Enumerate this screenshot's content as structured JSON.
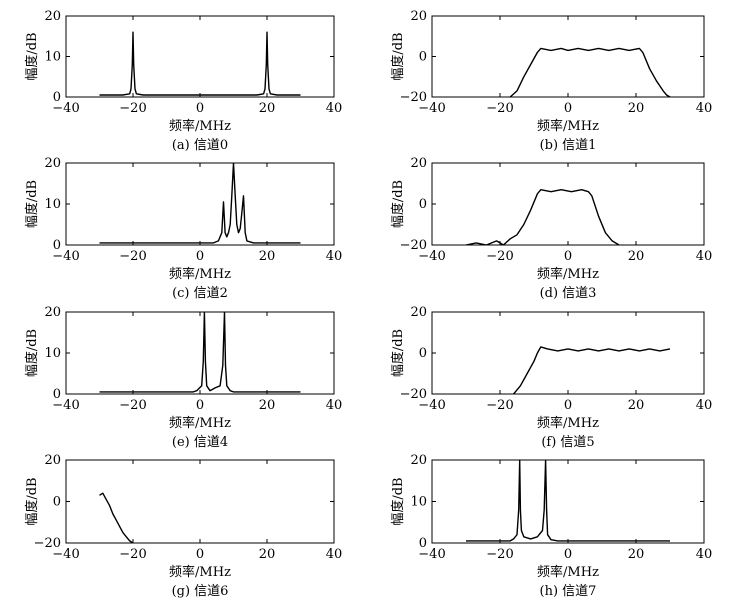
{
  "chart_data": [
    {
      "id": "a",
      "type": "line",
      "caption": "(a) 信道0",
      "xlabel": "频率/MHz",
      "ylabel": "幅度/dB",
      "xlim": [
        -40,
        40
      ],
      "ylim": [
        0,
        20
      ],
      "xticks": [
        -40,
        -20,
        0,
        20,
        40
      ],
      "yticks": [
        0,
        10,
        20
      ],
      "series": [
        {
          "x": [
            -30,
            -23,
            -21,
            -20.6,
            -20.2,
            -20,
            -19.8,
            -19.4,
            -19,
            -17,
            0,
            17,
            19,
            19.4,
            19.8,
            20,
            20.2,
            20.6,
            21,
            23,
            30
          ],
          "y": [
            0.5,
            0.5,
            0.8,
            2,
            8,
            16,
            8,
            2,
            0.8,
            0.5,
            0.5,
            0.5,
            0.8,
            2,
            8,
            16,
            8,
            2,
            0.8,
            0.5,
            0.5
          ]
        }
      ]
    },
    {
      "id": "b",
      "type": "line",
      "caption": "(b) 信道1",
      "xlabel": "频率/MHz",
      "ylabel": "幅度/dB",
      "xlim": [
        -40,
        40
      ],
      "ylim": [
        -20,
        20
      ],
      "xticks": [
        -40,
        -20,
        0,
        20,
        40
      ],
      "yticks": [
        -20,
        0,
        20
      ],
      "series": [
        {
          "x": [
            -17,
            -15,
            -13,
            -11,
            -9,
            -8,
            -5,
            -2,
            0,
            3,
            6,
            9,
            12,
            15,
            18,
            21,
            22,
            24,
            26,
            28,
            29,
            30
          ],
          "y": [
            -20,
            -17,
            -10,
            -4,
            2,
            4,
            3,
            4,
            3,
            4,
            3,
            4,
            3,
            4,
            3,
            4,
            2,
            -6,
            -12,
            -17,
            -19,
            -20
          ]
        }
      ]
    },
    {
      "id": "c",
      "type": "line",
      "caption": "(c) 信道2",
      "xlabel": "频率/MHz",
      "ylabel": "幅度/dB",
      "xlim": [
        -40,
        40
      ],
      "ylim": [
        0,
        20
      ],
      "xticks": [
        -40,
        -20,
        0,
        20,
        40
      ],
      "yticks": [
        0,
        10,
        20
      ],
      "series": [
        {
          "x": [
            -30,
            4,
            5.5,
            6.5,
            7,
            7.5,
            8,
            8.5,
            9,
            9.5,
            10,
            10.5,
            11,
            11.5,
            12,
            12.5,
            13,
            13.5,
            14,
            16,
            30
          ],
          "y": [
            0.5,
            0.5,
            1,
            3,
            10.5,
            3,
            2,
            3,
            5,
            12,
            20,
            12,
            5,
            3,
            4,
            8,
            12,
            3,
            1,
            0.5,
            0.5
          ]
        }
      ]
    },
    {
      "id": "d",
      "type": "line",
      "caption": "(d) 信道3",
      "xlabel": "频率/MHz",
      "ylabel": "幅度/dB",
      "xlim": [
        -40,
        40
      ],
      "ylim": [
        -20,
        20
      ],
      "xticks": [
        -40,
        -20,
        0,
        20,
        40
      ],
      "yticks": [
        -20,
        0,
        20
      ],
      "series": [
        {
          "x": [
            -30,
            -27,
            -24,
            -21,
            -19,
            -17,
            -15,
            -13,
            -11,
            -9,
            -8,
            -5,
            -2,
            1,
            4,
            6,
            7,
            9,
            11,
            13,
            15
          ],
          "y": [
            -20,
            -19,
            -20,
            -18,
            -20,
            -17,
            -15,
            -10,
            -3,
            5,
            7,
            6,
            7,
            6,
            7,
            6,
            4,
            -6,
            -14,
            -18,
            -20
          ]
        }
      ]
    },
    {
      "id": "e",
      "type": "line",
      "caption": "(e) 信道4",
      "xlabel": "频率/MHz",
      "ylabel": "幅度/dB",
      "xlim": [
        -40,
        40
      ],
      "ylim": [
        0,
        20
      ],
      "xticks": [
        -40,
        -20,
        0,
        20,
        40
      ],
      "yticks": [
        0,
        10,
        20
      ],
      "series": [
        {
          "x": [
            -30,
            -2,
            -1,
            0.5,
            1,
            1.3,
            1.6,
            2,
            3,
            4.5,
            6,
            6.8,
            7.3,
            7.6,
            8,
            9,
            10,
            11,
            30
          ],
          "y": [
            0.5,
            0.5,
            0.8,
            2,
            8,
            20,
            8,
            2,
            0.8,
            1.5,
            2,
            7,
            20,
            7,
            2,
            0.8,
            0.5,
            0.5,
            0.5
          ]
        }
      ]
    },
    {
      "id": "f",
      "type": "line",
      "caption": "(f) 信道5",
      "xlabel": "频率/MHz",
      "ylabel": "幅度/dB",
      "xlim": [
        -40,
        40
      ],
      "ylim": [
        -20,
        20
      ],
      "xticks": [
        -40,
        -20,
        0,
        20,
        40
      ],
      "yticks": [
        -20,
        0,
        20
      ],
      "series": [
        {
          "x": [
            -16,
            -14,
            -12,
            -10,
            -9,
            -8,
            -6,
            -3,
            0,
            3,
            6,
            9,
            12,
            15,
            18,
            21,
            24,
            27,
            30
          ],
          "y": [
            -20,
            -16,
            -10,
            -4,
            0,
            3,
            2,
            1,
            2,
            1,
            2,
            1,
            2,
            1,
            2,
            1,
            2,
            1,
            2
          ]
        }
      ]
    },
    {
      "id": "g",
      "type": "line",
      "caption": "(g) 信道6",
      "xlabel": "频率/MHz",
      "ylabel": "幅度/dB",
      "xlim": [
        -40,
        40
      ],
      "ylim": [
        -20,
        20
      ],
      "xticks": [
        -40,
        -20,
        0,
        20,
        40
      ],
      "yticks": [
        -20,
        0,
        20
      ],
      "series": [
        {
          "x": [
            -30,
            -29,
            -28,
            -27,
            -26,
            -25,
            -24,
            -23,
            -22,
            -21,
            -20
          ],
          "y": [
            3,
            4,
            1,
            -2,
            -6,
            -9,
            -12,
            -15,
            -17,
            -19,
            -20
          ]
        }
      ]
    },
    {
      "id": "h",
      "type": "line",
      "caption": "(h) 信道7",
      "xlabel": "频率/MHz",
      "ylabel": "幅度/dB",
      "xlim": [
        -40,
        40
      ],
      "ylim": [
        0,
        20
      ],
      "xticks": [
        -40,
        -20,
        0,
        20,
        40
      ],
      "yticks": [
        0,
        10,
        20
      ],
      "series": [
        {
          "x": [
            -30,
            -17,
            -16,
            -15,
            -14.5,
            -14.2,
            -14,
            -13.7,
            -13,
            -11,
            -9,
            -7.5,
            -7,
            -6.6,
            -6.3,
            -6,
            -5,
            -3,
            30
          ],
          "y": [
            0.5,
            0.5,
            1,
            2,
            8,
            20,
            8,
            3,
            1.5,
            1,
            1.5,
            3,
            8,
            20,
            8,
            2,
            0.8,
            0.5,
            0.5
          ]
        }
      ]
    }
  ]
}
